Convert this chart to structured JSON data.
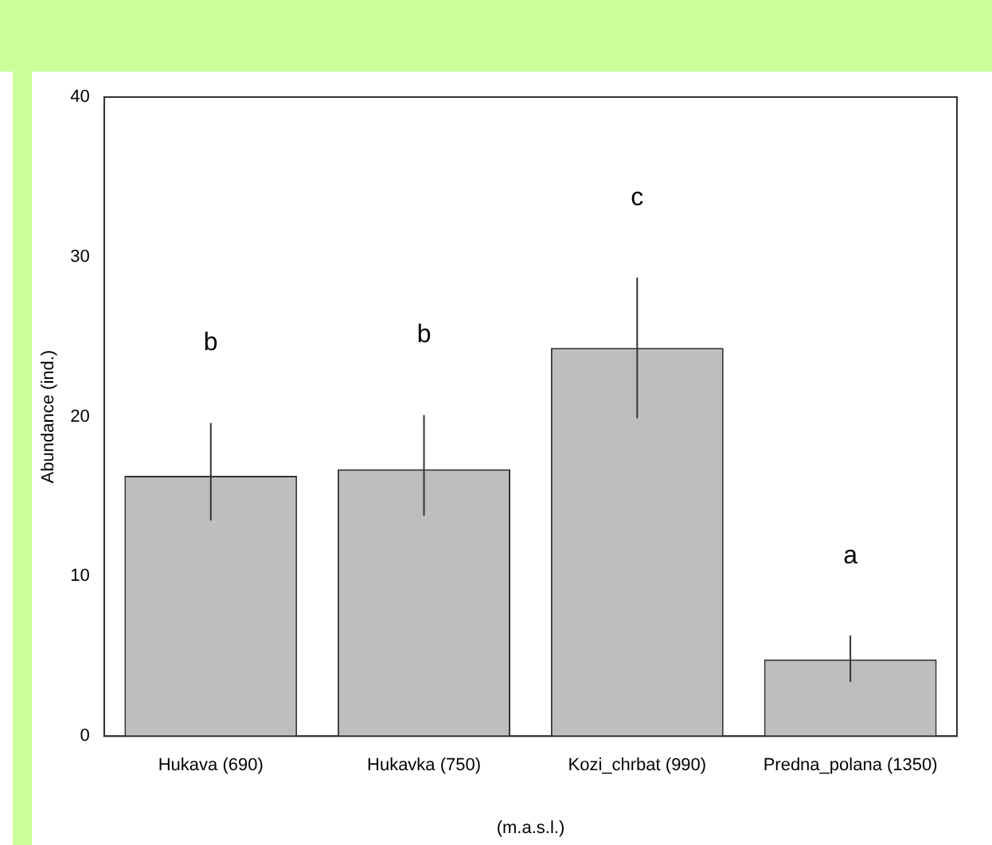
{
  "chart_data": {
    "type": "bar",
    "xlabel": "(m.a.s.l.)",
    "ylabel": "Abundance (ind.)",
    "categories": [
      "Hukava (690)",
      "Hukavka (750)",
      "Kozi_chrbat (990)",
      "Predna_polana (1350)"
    ],
    "values": [
      16.3,
      16.7,
      24.3,
      4.8
    ],
    "errors": [
      [
        13.5,
        19.6
      ],
      [
        13.8,
        20.1
      ],
      [
        19.9,
        28.7
      ],
      [
        3.4,
        6.3
      ]
    ],
    "color": "#bebebe",
    "ylim": [
      0,
      40
    ],
    "yticks": [
      0,
      10,
      20,
      30,
      40
    ],
    "annotations": [
      "b",
      "b",
      "c",
      "a"
    ]
  }
}
